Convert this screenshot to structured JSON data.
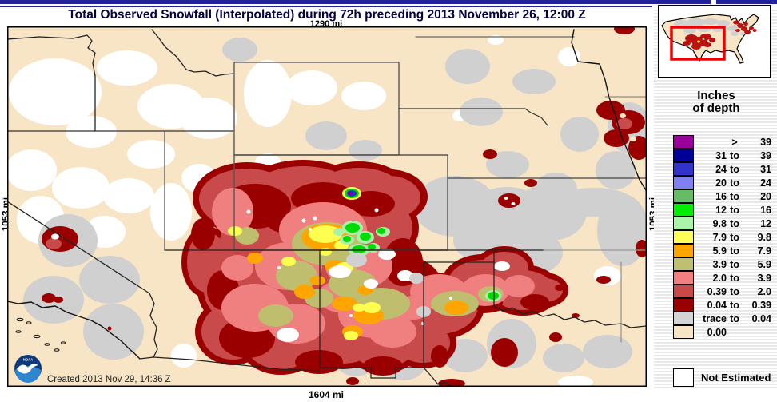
{
  "title_bar": {
    "title": "Total Observed Snowfall (Interpolated) during 72h preceding 2013 November 26, 12:00 Z"
  },
  "map": {
    "scale_top": "1290 mi",
    "scale_bottom": "1604 mi",
    "scale_left": "1053 mi",
    "scale_right": "1053 mi",
    "created_label": "Created 2013 Nov 29, 14:36 Z"
  },
  "legend": {
    "title_line1": "Inches",
    "title_line2": "of depth",
    "not_estimated_label": "Not Estimated",
    "rows": [
      {
        "min": "",
        "op": ">",
        "max": "39",
        "color": "#990099"
      },
      {
        "min": "31",
        "op": "to",
        "max": "39",
        "color": "#000099"
      },
      {
        "min": "24",
        "op": "to",
        "max": "31",
        "color": "#3333CC"
      },
      {
        "min": "20",
        "op": "to",
        "max": "24",
        "color": "#8080F0"
      },
      {
        "min": "16",
        "op": "to",
        "max": "20",
        "color": "#66BB66"
      },
      {
        "min": "12",
        "op": "to",
        "max": "16",
        "color": "#00EE00"
      },
      {
        "min": "9.8",
        "op": "to",
        "max": "12",
        "color": "#AAF5AA"
      },
      {
        "min": "7.9",
        "op": "to",
        "max": "9.8",
        "color": "#FFFF55"
      },
      {
        "min": "5.9",
        "op": "to",
        "max": "7.9",
        "color": "#FFA500"
      },
      {
        "min": "3.9",
        "op": "to",
        "max": "5.9",
        "color": "#BFBF70"
      },
      {
        "min": "2.0",
        "op": "to",
        "max": "3.9",
        "color": "#F28080"
      },
      {
        "min": "0.39",
        "op": "to",
        "max": "2.0",
        "color": "#C94848"
      },
      {
        "min": "0.04",
        "op": "to",
        "max": "0.39",
        "color": "#990000"
      },
      {
        "min": "trace",
        "op": "to",
        "max": "0.04",
        "color": "#D4D4D4"
      },
      {
        "min": "0.00",
        "op": "",
        "max": "",
        "color": "#F8E5C6"
      }
    ]
  },
  "colors": {
    "navy": "#22229A",
    "cream": "#F8E5C6",
    "trace-gray": "#D0D0D0",
    "dark-red": "#9A0000",
    "brick": "#C84A4A",
    "salmon": "#F08080",
    "khaki": "#BEBE6E",
    "orange": "#FFA500",
    "yellow": "#FFFF50",
    "light-green": "#A9F0A9",
    "bright-green": "#00DC00",
    "blue": "#2233CC",
    "purple": "#880088",
    "extent-rect": "#F00000"
  }
}
